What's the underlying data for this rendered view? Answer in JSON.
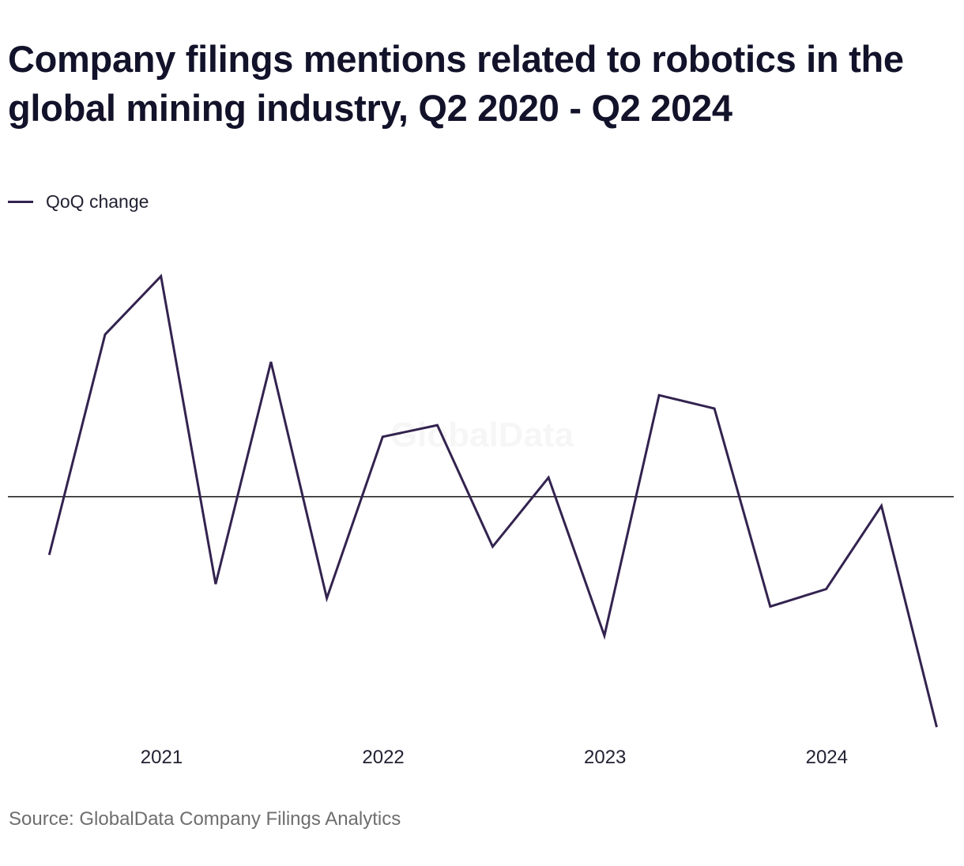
{
  "chart_data": {
    "type": "line",
    "title": "Company filings mentions related to robotics in the global mining industry, Q2 2020 - Q2 2024",
    "xlabel": "",
    "ylabel": "",
    "series": [
      {
        "name": "QoQ change",
        "color": "#33234f",
        "points": [
          {
            "x": "2020-06-30",
            "y": -0.7
          },
          {
            "x": "2020-09-30",
            "y": 1.95
          },
          {
            "x": "2020-12-31",
            "y": 2.65
          },
          {
            "x": "2021-03-31",
            "y": -1.05
          },
          {
            "x": "2021-06-30",
            "y": 1.62
          },
          {
            "x": "2021-09-30",
            "y": -1.22
          },
          {
            "x": "2021-12-31",
            "y": 0.72
          },
          {
            "x": "2022-03-31",
            "y": 0.86
          },
          {
            "x": "2022-06-30",
            "y": -0.6
          },
          {
            "x": "2022-09-30",
            "y": 0.23
          },
          {
            "x": "2022-12-31",
            "y": -1.67
          },
          {
            "x": "2023-03-31",
            "y": 1.22
          },
          {
            "x": "2023-06-30",
            "y": 1.06
          },
          {
            "x": "2023-09-30",
            "y": -1.32
          },
          {
            "x": "2023-12-31",
            "y": -1.11
          },
          {
            "x": "2024-03-31",
            "y": -0.11
          },
          {
            "x": "2024-06-30",
            "y": -2.77
          }
        ]
      }
    ],
    "x_ticks": [
      "2021",
      "2022",
      "2023",
      "2024"
    ],
    "x_tick_dates": [
      "2021-01-01",
      "2022-01-01",
      "2023-01-01",
      "2024-01-01"
    ],
    "xlim": [
      "2020-04-23",
      "2024-07-28"
    ],
    "ylim": [
      -2.9,
      2.95
    ],
    "zero_line": true,
    "grid": false,
    "legend": "top-left",
    "watermark": "GlobalData",
    "source": "Source: GlobalData Company Filings Analytics"
  }
}
